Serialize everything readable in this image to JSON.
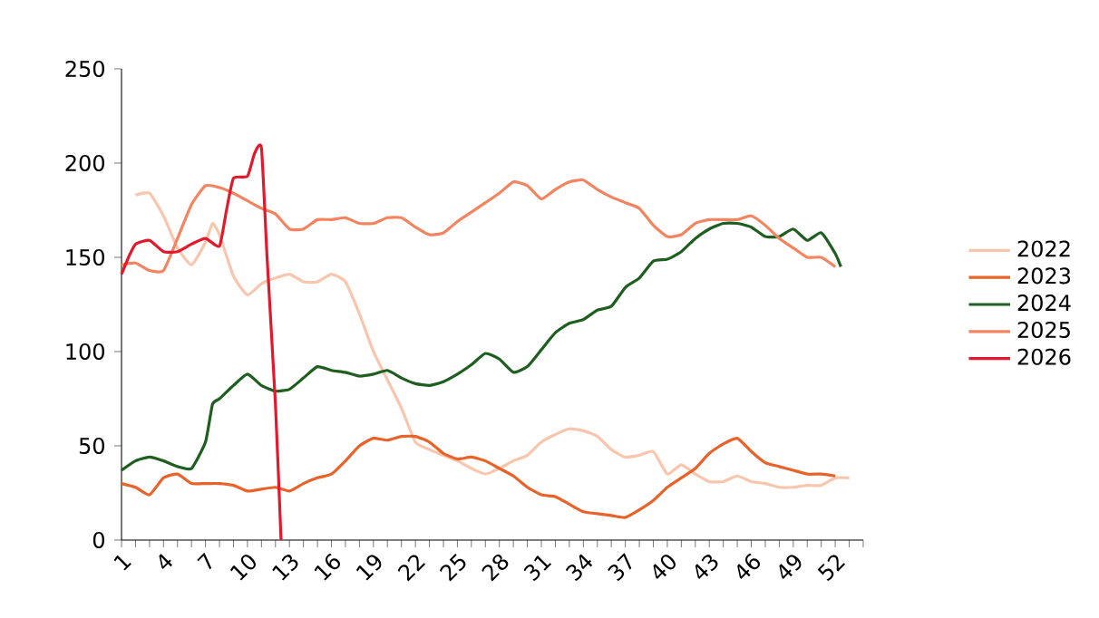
{
  "chart_data": {
    "type": "line",
    "xlim": [
      1,
      54
    ],
    "ylim": [
      0,
      250
    ],
    "yticks": [
      0,
      50,
      100,
      150,
      200,
      250
    ],
    "xticks": [
      1,
      {
        "value": 2,
        "label": null
      },
      {
        "value": 3,
        "label": null
      },
      4,
      {
        "value": 5,
        "label": null
      },
      {
        "value": 6,
        "label": null
      },
      7,
      {
        "value": 8,
        "label": null
      },
      {
        "value": 9,
        "label": null
      },
      10,
      {
        "value": 11,
        "label": null
      },
      {
        "value": 12,
        "label": null
      },
      13,
      {
        "value": 14,
        "label": null
      },
      {
        "value": 15,
        "label": null
      },
      16,
      {
        "value": 17,
        "label": null
      },
      {
        "value": 18,
        "label": null
      },
      19,
      {
        "value": 20,
        "label": null
      },
      {
        "value": 21,
        "label": null
      },
      22,
      {
        "value": 23,
        "label": null
      },
      {
        "value": 24,
        "label": null
      },
      25,
      {
        "value": 26,
        "label": null
      },
      {
        "value": 27,
        "label": null
      },
      28,
      {
        "value": 29,
        "label": null
      },
      {
        "value": 30,
        "label": null
      },
      31,
      {
        "value": 32,
        "label": null
      },
      {
        "value": 33,
        "label": null
      },
      34,
      {
        "value": 35,
        "label": null
      },
      {
        "value": 36,
        "label": null
      },
      37,
      {
        "value": 38,
        "label": null
      },
      {
        "value": 39,
        "label": null
      },
      40,
      {
        "value": 41,
        "label": null
      },
      {
        "value": 42,
        "label": null
      },
      43,
      {
        "value": 44,
        "label": null
      },
      {
        "value": 45,
        "label": null
      },
      46,
      {
        "value": 47,
        "label": null
      },
      {
        "value": 48,
        "label": null
      },
      49,
      {
        "value": 50,
        "label": null
      },
      {
        "value": 51,
        "label": null
      },
      52,
      {
        "value": 53,
        "label": null
      },
      {
        "value": 54,
        "label": null
      }
    ],
    "legend": "right",
    "grid": false,
    "series": [
      {
        "name": "2022",
        "color": "#f9c6ad",
        "x": [
          2,
          3,
          4,
          5,
          6,
          7,
          7.5,
          8,
          9,
          10,
          11,
          12,
          13,
          14,
          15,
          16,
          17,
          18,
          19,
          20,
          21,
          22,
          23,
          24,
          25,
          26,
          27,
          28,
          29,
          30,
          31,
          32,
          33,
          34,
          35,
          36,
          37,
          38,
          39,
          40,
          41,
          42,
          43,
          44,
          45,
          46,
          47,
          48,
          49,
          50,
          51,
          52,
          53
        ],
        "values": [
          183,
          184,
          172,
          155,
          146,
          158,
          168,
          162,
          140,
          130,
          136,
          139,
          141,
          137,
          137,
          141,
          137,
          120,
          100,
          85,
          70,
          52,
          48,
          45,
          42,
          38,
          35,
          38,
          42,
          45,
          52,
          56,
          59,
          58,
          55,
          48,
          44,
          45,
          47,
          35,
          40,
          35,
          31,
          31,
          34,
          31,
          30,
          28,
          28,
          29,
          29,
          33,
          33
        ]
      },
      {
        "name": "2023",
        "color": "#e8622a",
        "x": [
          1,
          2,
          3,
          4,
          5,
          6,
          7,
          8,
          9,
          10,
          11,
          12,
          13,
          14,
          15,
          16,
          17,
          18,
          19,
          20,
          21,
          22,
          23,
          24,
          25,
          26,
          27,
          28,
          29,
          30,
          31,
          32,
          33,
          34,
          35,
          36,
          37,
          38,
          39,
          40,
          41,
          42,
          43,
          44,
          45,
          46,
          47,
          48,
          49,
          50,
          51,
          52
        ],
        "values": [
          30,
          28,
          24,
          33,
          35,
          30,
          30,
          30,
          29,
          26,
          27,
          28,
          26,
          30,
          33,
          35,
          42,
          50,
          54,
          53,
          55,
          55,
          52,
          46,
          43,
          44,
          42,
          38,
          34,
          28,
          24,
          23,
          19,
          15,
          14,
          13,
          12,
          16,
          21,
          28,
          33,
          38,
          46,
          51,
          54,
          47,
          41,
          39,
          37,
          35,
          35,
          34
        ]
      },
      {
        "name": "2024",
        "color": "#1e5e1e",
        "x": [
          1,
          2,
          3,
          4,
          5,
          6,
          7,
          7.5,
          8,
          9,
          10,
          11,
          12,
          13,
          14,
          15,
          16,
          17,
          18,
          19,
          20,
          21,
          22,
          23,
          24,
          25,
          26,
          27,
          28,
          29,
          30,
          31,
          32,
          33,
          34,
          35,
          36,
          37,
          38,
          39,
          40,
          41,
          42,
          43,
          44,
          45,
          46,
          47,
          48,
          49,
          50,
          51,
          52,
          52.4
        ],
        "values": [
          37,
          42,
          44,
          42,
          39,
          38,
          52,
          72,
          75,
          82,
          88,
          82,
          79,
          80,
          86,
          92,
          90,
          89,
          87,
          88,
          90,
          86,
          83,
          82,
          84,
          88,
          93,
          99,
          96,
          89,
          92,
          101,
          110,
          115,
          117,
          122,
          124,
          134,
          139,
          148,
          149,
          153,
          160,
          165,
          168,
          168,
          166,
          161,
          161,
          165,
          159,
          163,
          152,
          145
        ]
      },
      {
        "name": "2025",
        "color": "#f4845f",
        "x": [
          1,
          2,
          3,
          4,
          5,
          6,
          7,
          8,
          9,
          10,
          11,
          12,
          13,
          14,
          15,
          16,
          17,
          18,
          19,
          20,
          21,
          22,
          23,
          24,
          25,
          26,
          27,
          28,
          29,
          30,
          31,
          32,
          33,
          34,
          35,
          36,
          37,
          38,
          39,
          40,
          41,
          42,
          43,
          44,
          45,
          46,
          47,
          48,
          49,
          50,
          51,
          52
        ],
        "values": [
          146,
          147,
          143,
          143,
          160,
          178,
          188,
          187,
          184,
          180,
          176,
          173,
          165,
          165,
          170,
          170,
          171,
          168,
          168,
          171,
          171,
          166,
          162,
          163,
          169,
          174,
          179,
          184,
          190,
          188,
          181,
          186,
          190,
          191,
          186,
          182,
          179,
          176,
          167,
          161,
          162,
          168,
          170,
          170,
          170,
          172,
          167,
          160,
          155,
          150,
          150,
          145
        ]
      },
      {
        "name": "2026",
        "color": "#e3182c",
        "x": [
          1,
          1.5,
          2,
          3,
          4,
          5,
          6,
          7,
          8,
          8.5,
          9,
          10,
          10.5,
          11,
          11.4,
          12,
          12.4
        ],
        "values": [
          141,
          150,
          157,
          159,
          153,
          153,
          157,
          160,
          156,
          175,
          192,
          193,
          205,
          208,
          150,
          72,
          0
        ]
      }
    ]
  }
}
